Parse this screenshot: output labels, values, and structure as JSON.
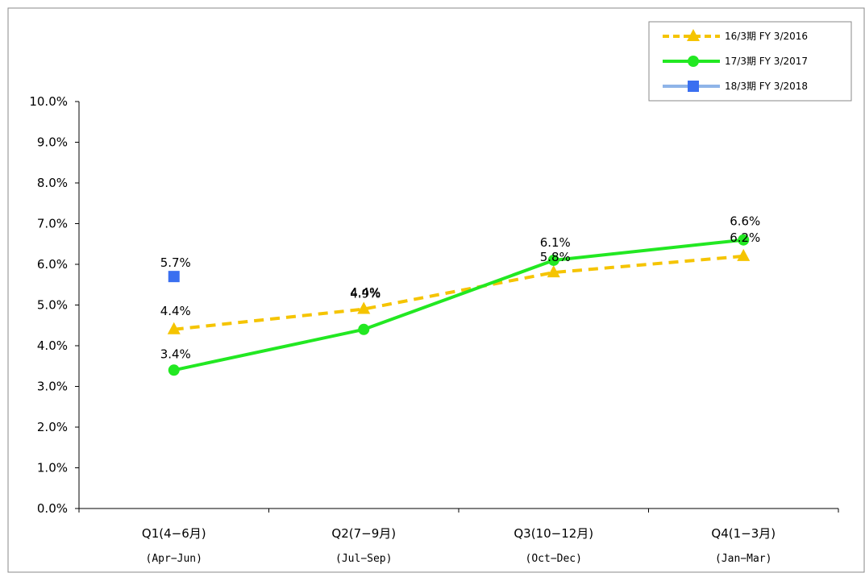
{
  "chart_data": {
    "type": "line",
    "title": "",
    "xlabel": "",
    "ylabel": "",
    "ylim": [
      0,
      10
    ],
    "yticks": [
      "0.0%",
      "1.0%",
      "2.0%",
      "3.0%",
      "4.0%",
      "5.0%",
      "6.0%",
      "7.0%",
      "8.0%",
      "9.0%",
      "10.0%"
    ],
    "categories": [
      "Q1(4−6月)",
      "Q2(7−9月)",
      "Q3(10−12月)",
      "Q4(1−3月)"
    ],
    "subcategories": [
      "(Apr−Jun)",
      "(Jul−Sep)",
      "(Oct−Dec)",
      "(Jan−Mar)"
    ],
    "grid": false,
    "legend_position": "top-right",
    "series": [
      {
        "name": "16/3期 FY 3/2016",
        "values": [
          4.4,
          4.9,
          5.8,
          6.2
        ],
        "labels": [
          "4.4%",
          "4.9%",
          "5.8%",
          "6.2%"
        ],
        "color": "#F5C400",
        "line": "dashed",
        "marker": "triangle"
      },
      {
        "name": "17/3期 FY 3/2017",
        "values": [
          3.4,
          4.4,
          6.1,
          6.6
        ],
        "labels": [
          "3.4%",
          "4.4%",
          "6.1%",
          "6.6%"
        ],
        "color": "#22E822",
        "line": "solid",
        "marker": "circle"
      },
      {
        "name": "18/3期 FY 3/2018",
        "values": [
          5.7,
          null,
          null,
          null
        ],
        "labels": [
          "5.7%",
          "",
          "",
          ""
        ],
        "color": "#3A6FF0",
        "line_color": "#8FB4E8",
        "line": "solid",
        "marker": "square"
      }
    ]
  }
}
